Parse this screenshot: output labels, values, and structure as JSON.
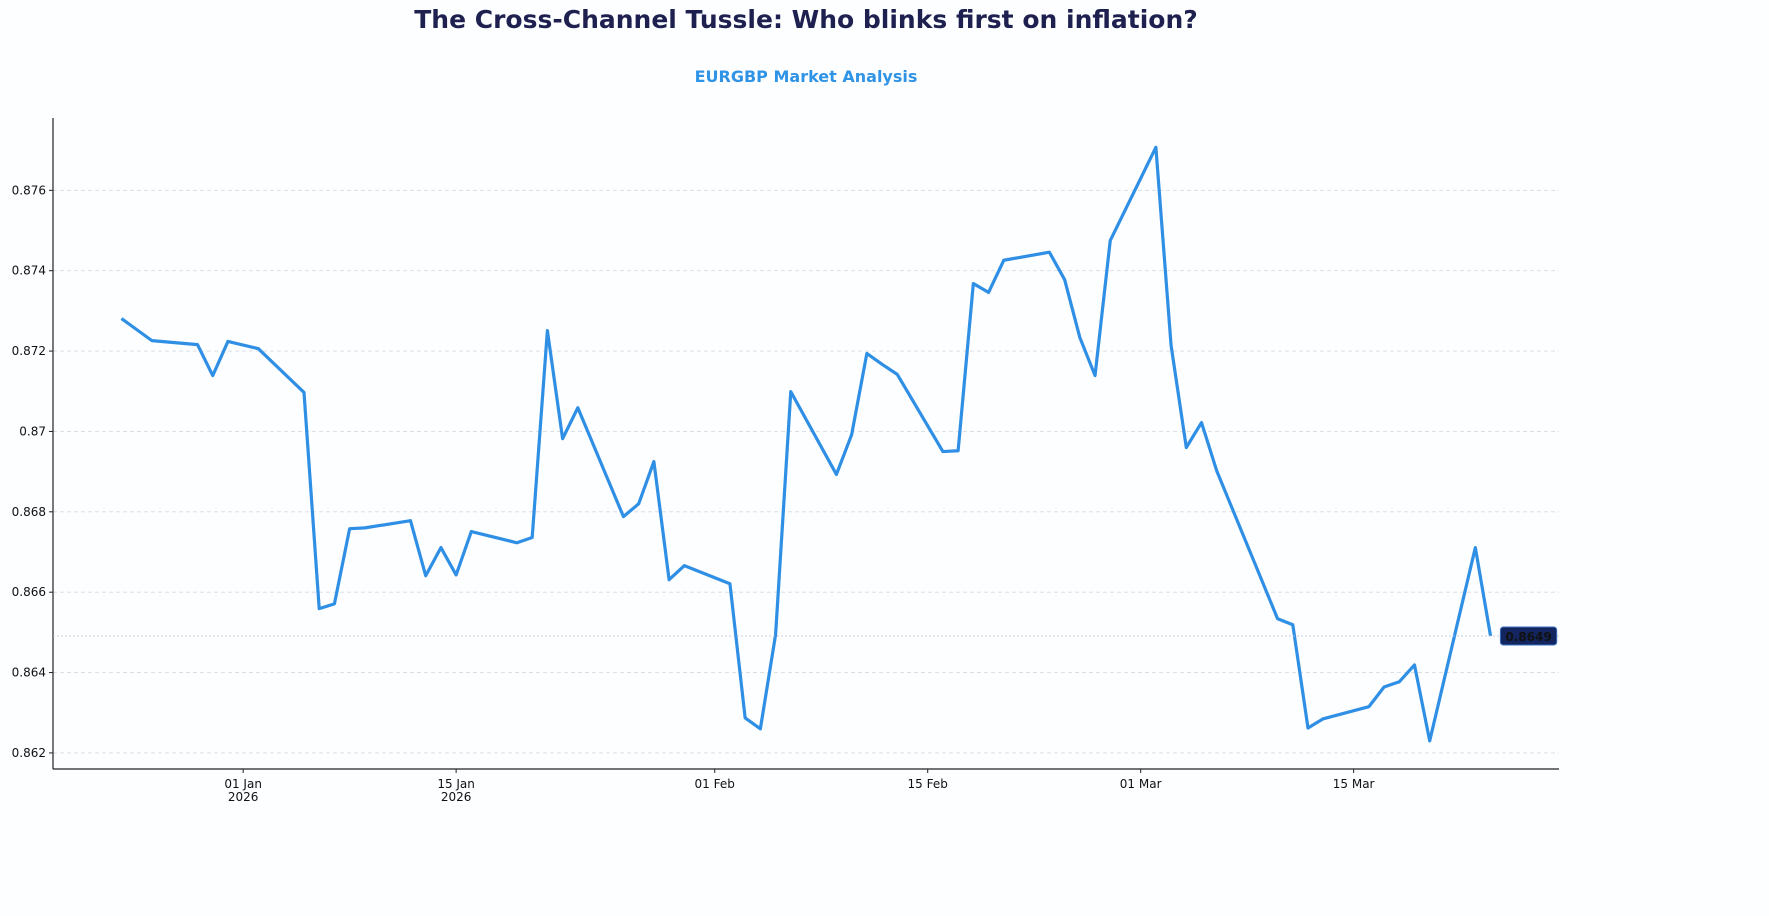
{
  "chart_data": {
    "type": "line",
    "title": "The Cross-Channel Tussle: Who blinks first on inflation?",
    "subtitle": "EURGBP Market Analysis",
    "x": [
      "2025-12-24",
      "2025-12-26",
      "2025-12-29",
      "2025-12-30",
      "2025-12-31",
      "2026-01-02",
      "2026-01-05",
      "2026-01-06",
      "2026-01-07",
      "2026-01-08",
      "2026-01-09",
      "2026-01-12",
      "2026-01-13",
      "2026-01-14",
      "2026-01-15",
      "2026-01-16",
      "2026-01-19",
      "2026-01-20",
      "2026-01-21",
      "2026-01-22",
      "2026-01-23",
      "2026-01-26",
      "2026-01-27",
      "2026-01-28",
      "2026-01-29",
      "2026-01-30",
      "2026-02-02",
      "2026-02-03",
      "2026-02-04",
      "2026-02-05",
      "2026-02-06",
      "2026-02-09",
      "2026-02-10",
      "2026-02-11",
      "2026-02-12",
      "2026-02-13",
      "2026-02-16",
      "2026-02-17",
      "2026-02-18",
      "2026-02-19",
      "2026-02-20",
      "2026-02-23",
      "2026-02-24",
      "2026-02-25",
      "2026-02-26",
      "2026-02-27",
      "2026-03-02",
      "2026-03-03",
      "2026-03-04",
      "2026-03-05",
      "2026-03-06",
      "2026-03-10",
      "2026-03-11",
      "2026-03-12",
      "2026-03-13",
      "2026-03-16",
      "2026-03-17",
      "2026-03-18",
      "2026-03-19",
      "2026-03-20",
      "2026-03-23",
      "2026-03-24"
    ],
    "series": [
      {
        "name": "EURGBP",
        "color": "#2f8fe5",
        "values": [
          0.87281,
          0.87226,
          0.87216,
          0.87139,
          0.87224,
          0.87206,
          0.87097,
          0.86559,
          0.86571,
          0.86758,
          0.8676,
          0.86778,
          0.86641,
          0.86711,
          0.86643,
          0.86751,
          0.86723,
          0.86736,
          0.87251,
          0.86982,
          0.87059,
          0.86788,
          0.8682,
          0.86925,
          0.86631,
          0.86666,
          0.86621,
          0.86287,
          0.8626,
          0.86494,
          0.87099,
          0.86893,
          0.86992,
          0.87194,
          0.87167,
          0.87142,
          0.8695,
          0.86952,
          0.87368,
          0.87346,
          0.87426,
          0.87446,
          0.87378,
          0.87234,
          0.87139,
          0.87475,
          0.87707,
          0.87214,
          0.8696,
          0.87022,
          0.86902,
          0.86534,
          0.86519,
          0.86262,
          0.86285,
          0.86315,
          0.86364,
          0.86377,
          0.86419,
          0.8623,
          0.86711,
          0.86491
        ],
        "value_labels": [
          null,
          null,
          null,
          null,
          null,
          null,
          null,
          null,
          null,
          null,
          null,
          null,
          null,
          null,
          null,
          null,
          null,
          null,
          null,
          null,
          null,
          null,
          null,
          null,
          null,
          null,
          null,
          null,
          null,
          null,
          null,
          null,
          null,
          null,
          null,
          null,
          null,
          null,
          null,
          null,
          null,
          null,
          null,
          null,
          null,
          null,
          null,
          null,
          null,
          null,
          null,
          null,
          null,
          null,
          null,
          null,
          null,
          null,
          null,
          null,
          null,
          "0.8649"
        ]
      }
    ],
    "xlim": [
      "2025-12-19T12:00:00Z",
      "2026-03-28T12:00:00Z"
    ],
    "xticks": [
      {
        "value": "2026-01-01",
        "label": "01 Jan\n2026"
      },
      {
        "value": "2026-01-15",
        "label": "15 Jan\n2026"
      },
      {
        "value": "2026-02-01",
        "label": "01 Feb"
      },
      {
        "value": "2026-02-15",
        "label": "15 Feb"
      },
      {
        "value": "2026-03-01",
        "label": "01 Mar"
      },
      {
        "value": "2026-03-15",
        "label": "15 Mar"
      }
    ],
    "ylim": [
      0.8616,
      0.8778
    ],
    "yticks": [
      0.862,
      0.864,
      0.866,
      0.868,
      0.87,
      0.872,
      0.874,
      0.876
    ],
    "grid": true,
    "label_color": "#13255e"
  }
}
